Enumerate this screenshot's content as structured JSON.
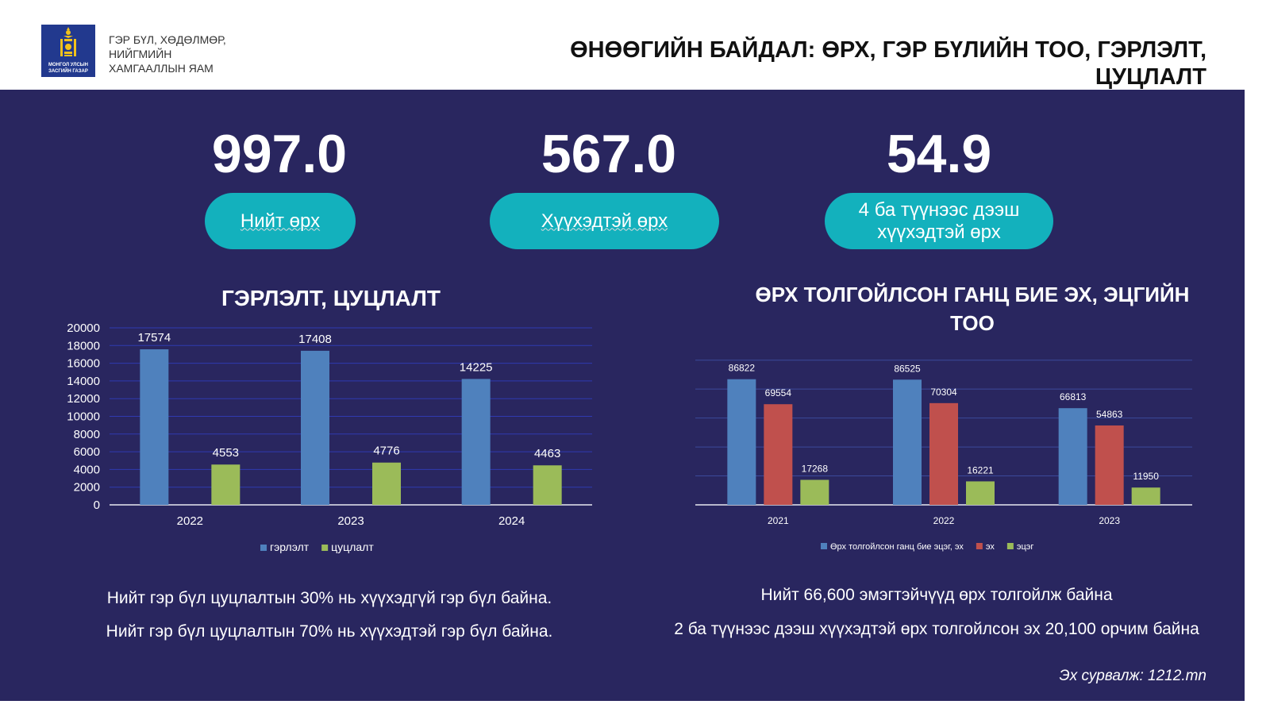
{
  "header": {
    "logo_text": [
      "МОНГОЛ УЛСЫН",
      "ЗАСГИЙН ГАЗАР"
    ],
    "ministry": [
      "ГЭР БҮЛ, ХӨДӨЛМӨР,",
      "НИЙГМИЙН",
      "ХАМГААЛЛЫН ЯАМ"
    ],
    "title": [
      "ӨНӨӨГИЙН БАЙДАЛ: ӨРХ, ГЭР БҮЛИЙН ТОО, ГЭРЛЭЛТ,",
      "ЦУЦЛАЛТ"
    ]
  },
  "kpis": [
    {
      "value": "997.0",
      "label": "Нийт өрх"
    },
    {
      "value": "567.0",
      "label": "Хүүхэдтэй өрх"
    },
    {
      "value": "54.9",
      "label": [
        "4 ба түүнээс дээш",
        "хүүхэдтэй өрх"
      ]
    }
  ],
  "colors": {
    "background": "#29265f",
    "pill": "#13b1bd",
    "blue": "#4f81bd",
    "red": "#c0504d",
    "green": "#9bbb59"
  },
  "chart_data": [
    {
      "type": "bar",
      "title": "ГЭРЛЭЛТ, ЦУЦЛАЛТ",
      "categories": [
        "2022",
        "2023",
        "2024"
      ],
      "series": [
        {
          "name": "гэрлэлт",
          "values": [
            17574,
            17408,
            14225
          ],
          "color": "#4f81bd"
        },
        {
          "name": "цуцлалт",
          "values": [
            4553,
            4776,
            4463
          ],
          "color": "#9bbb59"
        }
      ],
      "ylim": [
        0,
        20000
      ],
      "yticks": [
        "0",
        "2000",
        "4000",
        "6000",
        "8000",
        "10000",
        "12000",
        "14000",
        "16000",
        "18000",
        "20000"
      ],
      "grid": true,
      "legend": "bottom"
    },
    {
      "type": "bar",
      "title": [
        "ӨРХ ТОЛГОЙЛСОН ГАНЦ БИЕ ЭХ, ЭЦГИЙН",
        "ТОО"
      ],
      "categories": [
        "2021",
        "2022",
        "2023"
      ],
      "series": [
        {
          "name": "Өрх толгойлсон ганц бие эцэг, эх",
          "values": [
            86822,
            86525,
            66813
          ],
          "color": "#4f81bd"
        },
        {
          "name": "эх",
          "values": [
            69554,
            70304,
            54863
          ],
          "color": "#c0504d"
        },
        {
          "name": "эцэг",
          "values": [
            17268,
            16221,
            11950
          ],
          "color": "#9bbb59"
        }
      ],
      "ylim": [
        0,
        100000
      ],
      "grid": true,
      "legend": "bottom"
    }
  ],
  "notes_left": [
    "Нийт гэр бүл цуцлалтын 30% нь хүүхэдгүй гэр бүл  байна.",
    "Нийт гэр бүл цуцлалтын 70% нь хүүхэдтэй гэр бүл байна."
  ],
  "notes_right": [
    "Нийт 66,600 эмэгтэйчүүд өрх толгойлж байна",
    "2 ба түүнээс дээш хүүхэдтэй өрх толгойлсон эх 20,100 орчим байна"
  ],
  "source": "Эх сурвалж: 1212.mn"
}
